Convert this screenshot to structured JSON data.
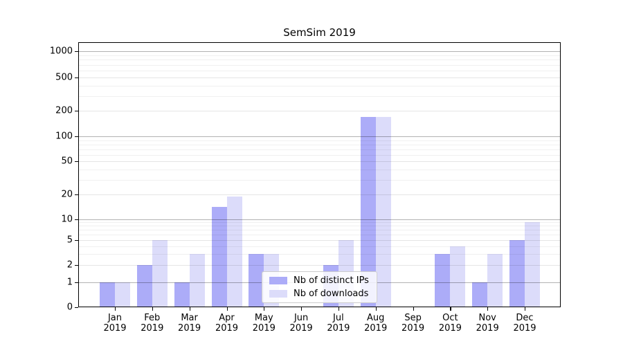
{
  "chart_data": {
    "type": "bar",
    "title": "SemSim 2019",
    "y_scale": "symlog",
    "grid": true,
    "ylim": [
      0,
      1000
    ],
    "y_tick_labels": [
      "0",
      "1",
      "2",
      "5",
      "10",
      "20",
      "50",
      "100",
      "200",
      "500",
      "1000"
    ],
    "y_tick_values": [
      0,
      1,
      2,
      5,
      10,
      20,
      50,
      100,
      200,
      500,
      1000
    ],
    "categories": [
      [
        "Jan",
        "2019"
      ],
      [
        "Feb",
        "2019"
      ],
      [
        "Mar",
        "2019"
      ],
      [
        "Apr",
        "2019"
      ],
      [
        "May",
        "2019"
      ],
      [
        "Jun",
        "2019"
      ],
      [
        "Jul",
        "2019"
      ],
      [
        "Aug",
        "2019"
      ],
      [
        "Sep",
        "2019"
      ],
      [
        "Oct",
        "2019"
      ],
      [
        "Nov",
        "2019"
      ],
      [
        "Dec",
        "2019"
      ]
    ],
    "series": [
      {
        "name": "Nb of distinct IPs",
        "color": "#acacf8",
        "values": [
          1,
          2,
          1,
          14,
          3,
          0,
          2,
          170,
          0,
          3,
          1,
          5
        ]
      },
      {
        "name": "Nb of downloads",
        "color": "#dcdcfa",
        "values": [
          1,
          5,
          3,
          19,
          3,
          0,
          5,
          170,
          0,
          4,
          3,
          9
        ]
      }
    ],
    "legend_position": "lower center, inside plot"
  }
}
